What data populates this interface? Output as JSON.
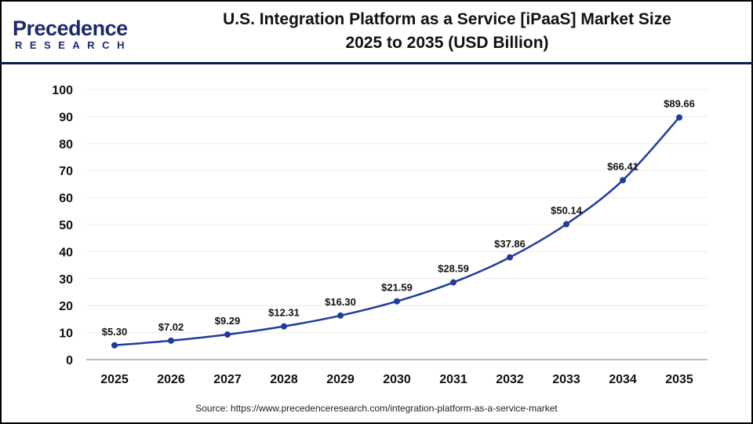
{
  "header": {
    "logo_main": "Precedence",
    "logo_sub": "RESEARCH",
    "title_line1": "U.S. Integration Platform as a Service [iPaaS] Market Size",
    "title_line2": "2025 to 2035 (USD Billion)"
  },
  "source": "Source: https://www.precedenceresearch.com/integration-platform-as-a-service-market",
  "chart_data": {
    "type": "line",
    "title": "U.S. Integration Platform as a Service [iPaaS] Market Size 2025 to 2035 (USD Billion)",
    "categories": [
      "2025",
      "2026",
      "2027",
      "2028",
      "2029",
      "2030",
      "2031",
      "2032",
      "2033",
      "2034",
      "2035"
    ],
    "values": [
      5.3,
      7.02,
      9.29,
      12.31,
      16.3,
      21.59,
      28.59,
      37.86,
      50.14,
      66.41,
      89.66
    ],
    "data_labels": [
      "$5.30",
      "$7.02",
      "$9.29",
      "$12.31",
      "$16.30",
      "$21.59",
      "$28.59",
      "$37.86",
      "$50.14",
      "$66.41",
      "$89.66"
    ],
    "yticks": [
      "0",
      "10",
      "20",
      "30",
      "40",
      "50",
      "60",
      "70",
      "80",
      "90",
      "100"
    ],
    "ylim": [
      0,
      100
    ],
    "grid": true,
    "line_color": "#1f3c9c",
    "xlabel": "",
    "ylabel": ""
  }
}
